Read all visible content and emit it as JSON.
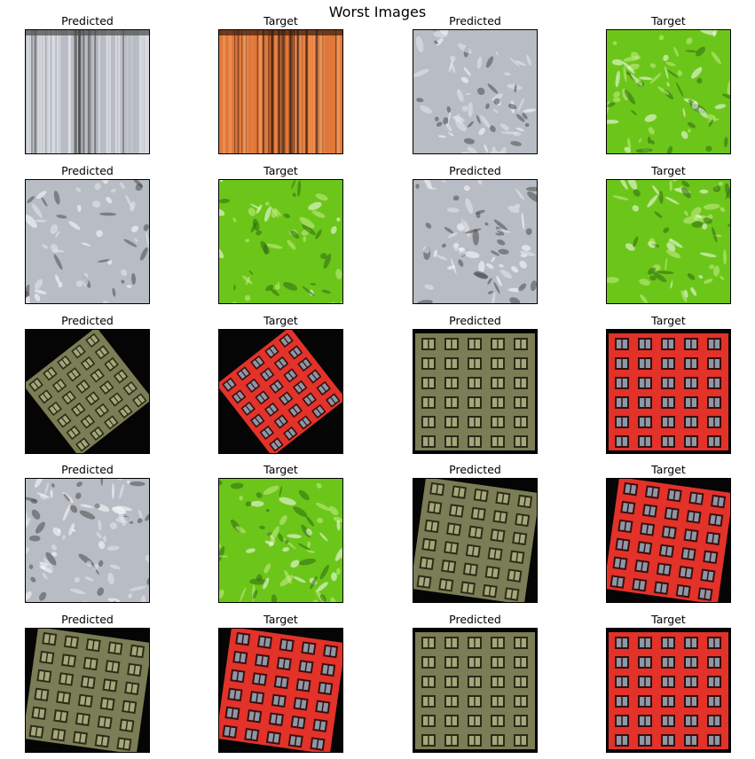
{
  "figure": {
    "title": "Worst Images"
  },
  "rows": [
    [
      {
        "label": "Predicted",
        "kind": "wood",
        "tone": "gray"
      },
      {
        "label": "Target",
        "kind": "wood",
        "tone": "orange"
      },
      {
        "label": "Predicted",
        "kind": "foliage",
        "tone": "gray"
      },
      {
        "label": "Target",
        "kind": "foliage",
        "tone": "green"
      }
    ],
    [
      {
        "label": "Predicted",
        "kind": "foliage",
        "tone": "gray"
      },
      {
        "label": "Target",
        "kind": "foliage",
        "tone": "green"
      },
      {
        "label": "Predicted",
        "kind": "foliage",
        "tone": "gray"
      },
      {
        "label": "Target",
        "kind": "foliage",
        "tone": "green"
      }
    ],
    [
      {
        "label": "Predicted",
        "kind": "facade-rotated",
        "tone": "olive"
      },
      {
        "label": "Target",
        "kind": "facade-rotated",
        "tone": "red"
      },
      {
        "label": "Predicted",
        "kind": "facade",
        "tone": "olive"
      },
      {
        "label": "Target",
        "kind": "facade",
        "tone": "red"
      }
    ],
    [
      {
        "label": "Predicted",
        "kind": "foliage",
        "tone": "gray"
      },
      {
        "label": "Target",
        "kind": "foliage",
        "tone": "green"
      },
      {
        "label": "Predicted",
        "kind": "facade-tilted",
        "tone": "olive"
      },
      {
        "label": "Target",
        "kind": "facade-tilted",
        "tone": "red"
      }
    ],
    [
      {
        "label": "Predicted",
        "kind": "facade-tilted",
        "tone": "olive"
      },
      {
        "label": "Target",
        "kind": "facade-tilted",
        "tone": "red"
      },
      {
        "label": "Predicted",
        "kind": "facade",
        "tone": "olive"
      },
      {
        "label": "Target",
        "kind": "facade",
        "tone": "red"
      }
    ]
  ],
  "palette": {
    "gray": {
      "base": "#b8bcc4",
      "dark": "#4a4a4a",
      "light": "#e6e9ee"
    },
    "orange": {
      "base": "#e0783a",
      "dark": "#3a1c10",
      "light": "#f3a060"
    },
    "green": {
      "base": "#6cc61a",
      "dark": "#2f6a12",
      "light": "#c9ef8a"
    },
    "olive": {
      "base": "#7a7d55",
      "dark": "#2b2a18",
      "light": "#a3a77a"
    },
    "red": {
      "base": "#e2322a",
      "dark": "#3a0c0a",
      "light": "#8a98a8"
    }
  }
}
